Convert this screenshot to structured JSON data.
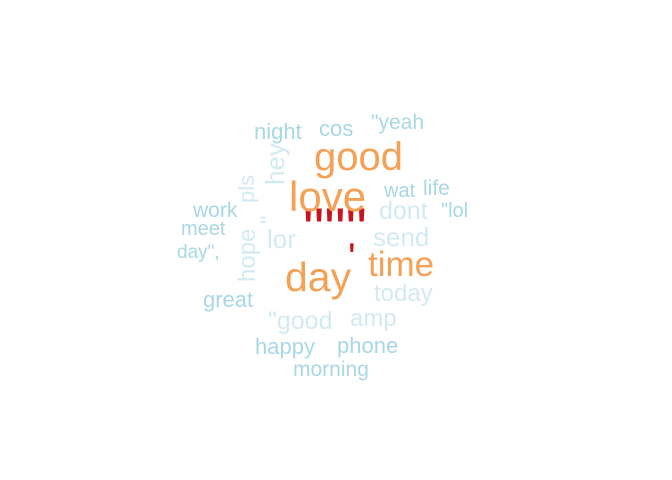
{
  "word_cloud": {
    "colors": {
      "light_blue": "#a8d8e6",
      "pale_blue": "#d2ebf1",
      "orange": "#f5a155",
      "red": "#c8141d"
    },
    "words": [
      {
        "text": "\"\"\"",
        "color": "#c8141d"
      },
      {
        "text": "'",
        "color": "#c8141d"
      },
      {
        "text": "love",
        "color": "#f5a155"
      },
      {
        "text": "day",
        "color": "#f5a155"
      },
      {
        "text": "good",
        "color": "#f5a155"
      },
      {
        "text": "time",
        "color": "#f5a155"
      },
      {
        "text": "night",
        "color": "#a8d8e6"
      },
      {
        "text": "cos",
        "color": "#a8d8e6"
      },
      {
        "text": "\"yeah",
        "color": "#a8d8e6"
      },
      {
        "text": "pls",
        "color": "#d2ebf1"
      },
      {
        "text": "hey",
        "color": "#d2ebf1"
      },
      {
        "text": "\"",
        "color": "#d2ebf1"
      },
      {
        "text": "wat",
        "color": "#a8d8e6"
      },
      {
        "text": "life",
        "color": "#a8d8e6"
      },
      {
        "text": "dont",
        "color": "#d2ebf1"
      },
      {
        "text": "\"lol",
        "color": "#a8d8e6"
      },
      {
        "text": "work",
        "color": "#a8d8e6"
      },
      {
        "text": "meet",
        "color": "#a8d8e6"
      },
      {
        "text": "day\",",
        "color": "#a8d8e6"
      },
      {
        "text": "hope",
        "color": "#d2ebf1"
      },
      {
        "text": "lor",
        "color": "#d2ebf1"
      },
      {
        "text": "send",
        "color": "#d2ebf1"
      },
      {
        "text": "today",
        "color": "#d2ebf1"
      },
      {
        "text": "great",
        "color": "#a8d8e6"
      },
      {
        "text": "\"good",
        "color": "#d2ebf1"
      },
      {
        "text": "amp",
        "color": "#d2ebf1"
      },
      {
        "text": "happy",
        "color": "#a8d8e6"
      },
      {
        "text": "phone",
        "color": "#a8d8e6"
      },
      {
        "text": "morning",
        "color": "#a8d8e6"
      }
    ]
  }
}
